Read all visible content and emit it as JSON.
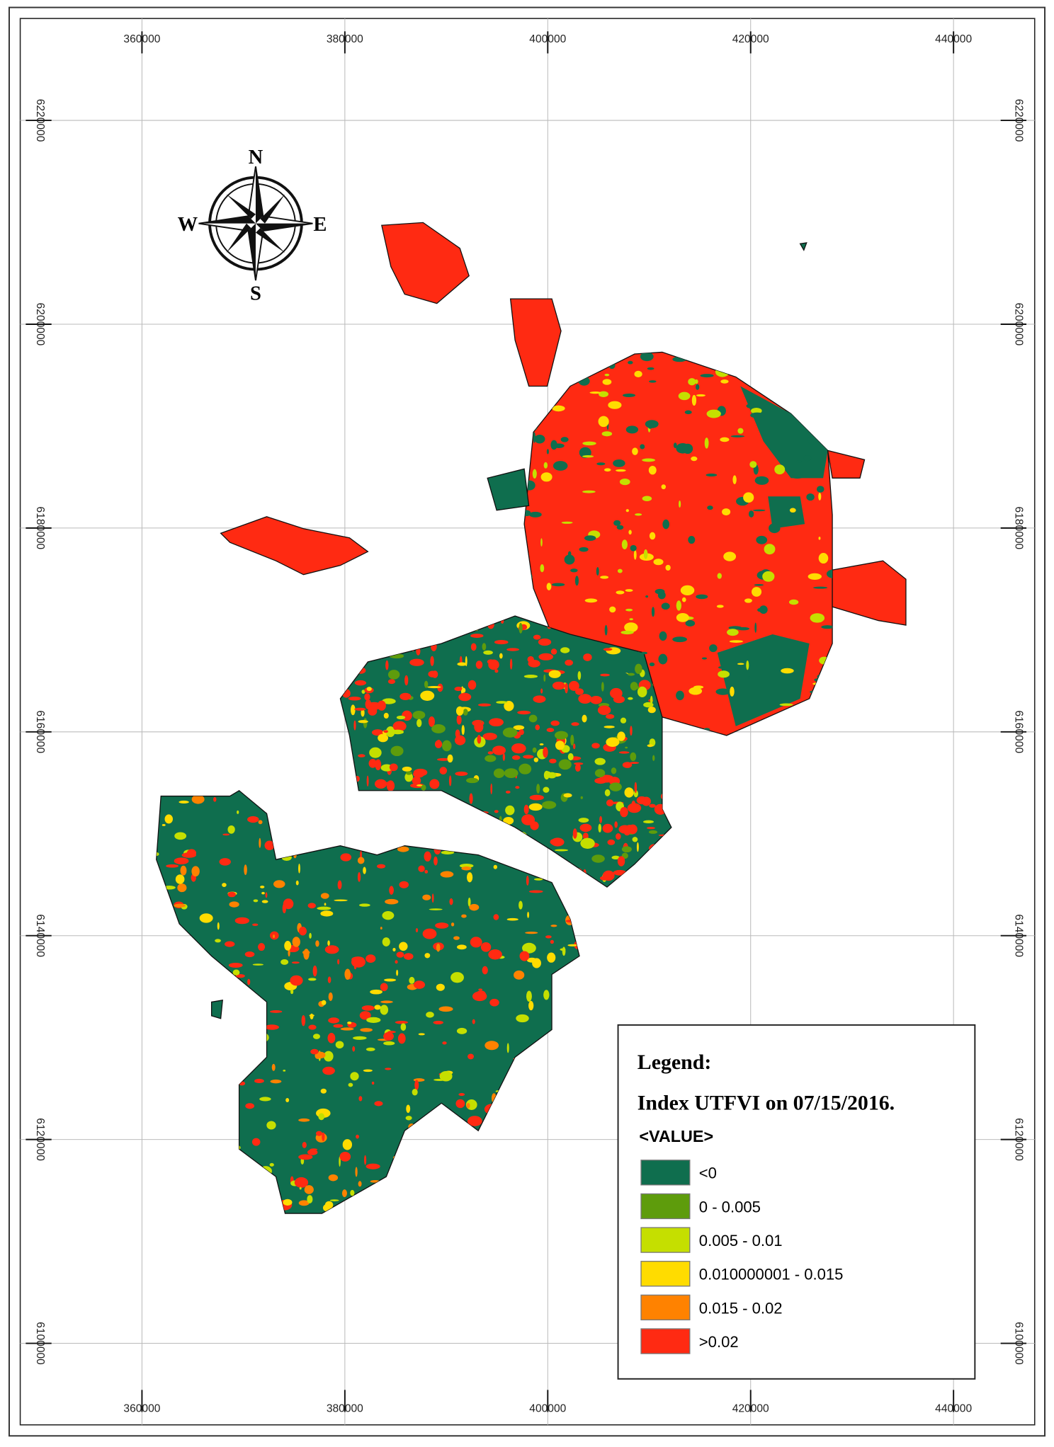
{
  "map": {
    "type": "map",
    "xlim": [
      348000,
      448000
    ],
    "ylim": [
      6092000,
      6230000
    ],
    "xticks": [
      360000,
      380000,
      400000,
      420000,
      440000
    ],
    "yticks": [
      6100000,
      6120000,
      6140000,
      6160000,
      6180000,
      6200000,
      6220000
    ],
    "grid": true,
    "compass": {
      "n": "N",
      "s": "S",
      "e": "E",
      "w": "W"
    },
    "legend": {
      "title": "Legend:",
      "subtitle": "Index UTFVI on 07/15/2016.",
      "field": "<VALUE>",
      "items": [
        {
          "label": "<0",
          "color": "#0f6e4e"
        },
        {
          "label": "0 - 0.005",
          "color": "#5e9c0c"
        },
        {
          "label": "0.005 - 0.01",
          "color": "#c5df00"
        },
        {
          "label": "0.010000001 - 0.015",
          "color": "#ffdc00"
        },
        {
          "label": "0.015 - 0.02",
          "color": "#ff8200"
        },
        {
          "label": ">0.02",
          "color": "#ff2a12"
        }
      ]
    }
  }
}
